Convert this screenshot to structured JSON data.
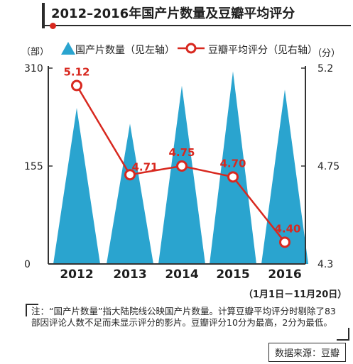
{
  "title": "2012–2016年国产片数量及豆瓣平均评分",
  "units": {
    "left": "（部）",
    "right": "（分）"
  },
  "legend": {
    "bar_label": "国产片数量（见左轴）",
    "line_label": "豆瓣平均评分（见右轴）"
  },
  "date_range": "（1月1日－11月20日）",
  "note": "注：“国产片数量”指大陆院线公映国产片数量。计算豆瓣平均评分时剔除了83部因评论人数不足而未显示评分的影片。豆瓣评分10分为最高，2分为最低。",
  "source": "数据来源：豆瓣",
  "colors": {
    "bars": "#2aa4cf",
    "line": "#d8281f",
    "text": "#222222"
  },
  "chart_data": {
    "type": "bar",
    "title": "2012–2016年国产片数量及豆瓣平均评分",
    "categories": [
      "2012",
      "2013",
      "2014",
      "2015",
      "2016"
    ],
    "series": [
      {
        "name": "国产片数量（见左轴）",
        "type": "bar",
        "axis": "left",
        "values": [
          247,
          222,
          282,
          305,
          276
        ]
      },
      {
        "name": "豆瓣平均评分（见右轴）",
        "type": "line",
        "axis": "right",
        "values": [
          5.12,
          4.71,
          4.75,
          4.7,
          4.4
        ],
        "labels": [
          "5.12",
          "4.71",
          "4.75",
          "4.70",
          "4.40"
        ]
      }
    ],
    "left_axis": {
      "ticks": [
        "0",
        "155",
        "310"
      ],
      "range": [
        0,
        310
      ]
    },
    "right_axis": {
      "ticks": [
        "4.3",
        "4.75",
        "5.2"
      ],
      "range": [
        4.3,
        5.2
      ]
    },
    "grid": false,
    "legend_position": "top"
  }
}
